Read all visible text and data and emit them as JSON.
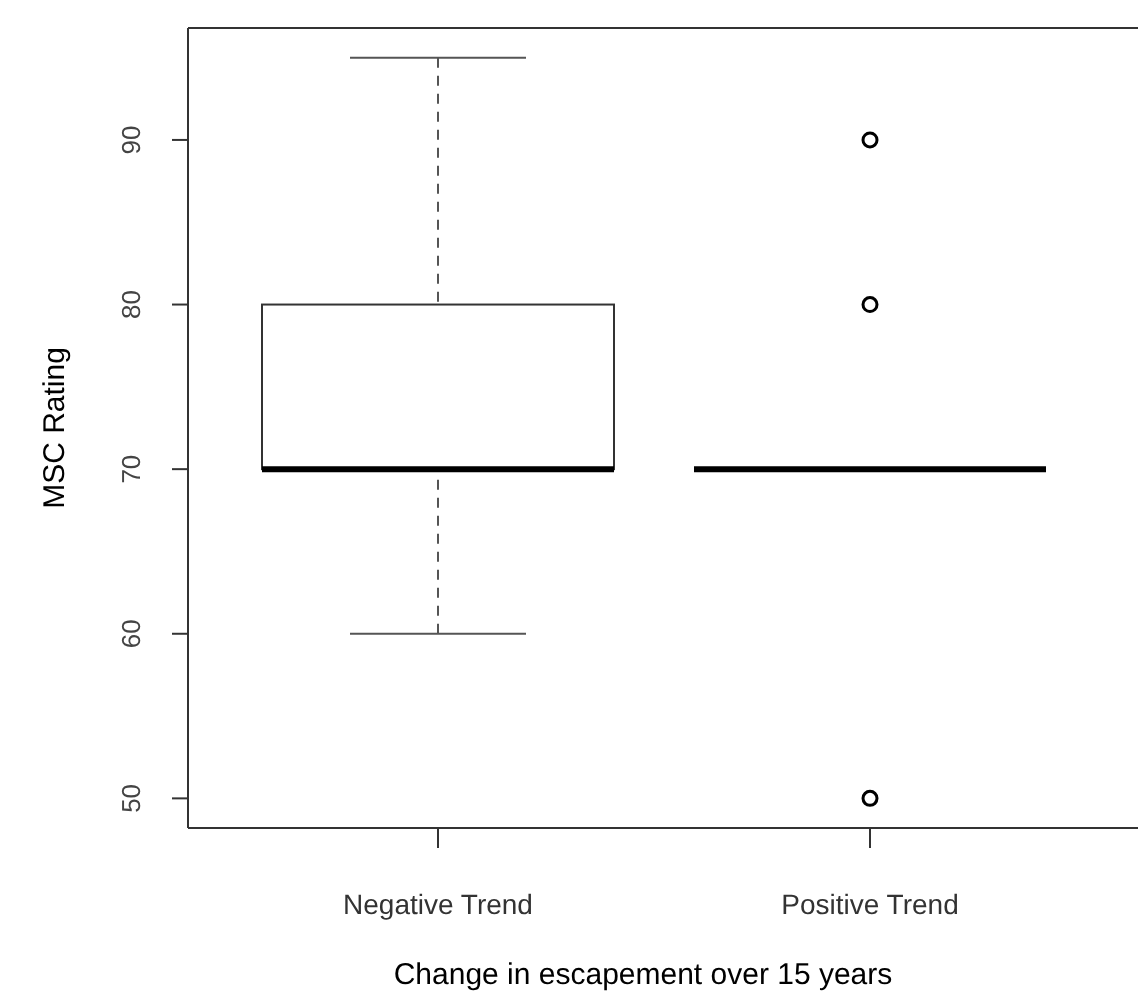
{
  "chart_data": {
    "type": "box",
    "xlabel": "Change in escapement over 15 years",
    "ylabel": "MSC Rating",
    "categories": [
      "Negative Trend",
      "Positive Trend"
    ],
    "boxes": [
      {
        "low": 60,
        "q1": 70,
        "median": 70,
        "q3": 80,
        "high": 95
      },
      {
        "low": 70,
        "q1": 70,
        "median": 70,
        "q3": 70,
        "high": 70,
        "outliers": [
          90,
          80,
          50
        ]
      }
    ],
    "ylim": [
      48.2,
      96.8
    ],
    "yticks": [
      50,
      60,
      70,
      80,
      90
    ]
  }
}
